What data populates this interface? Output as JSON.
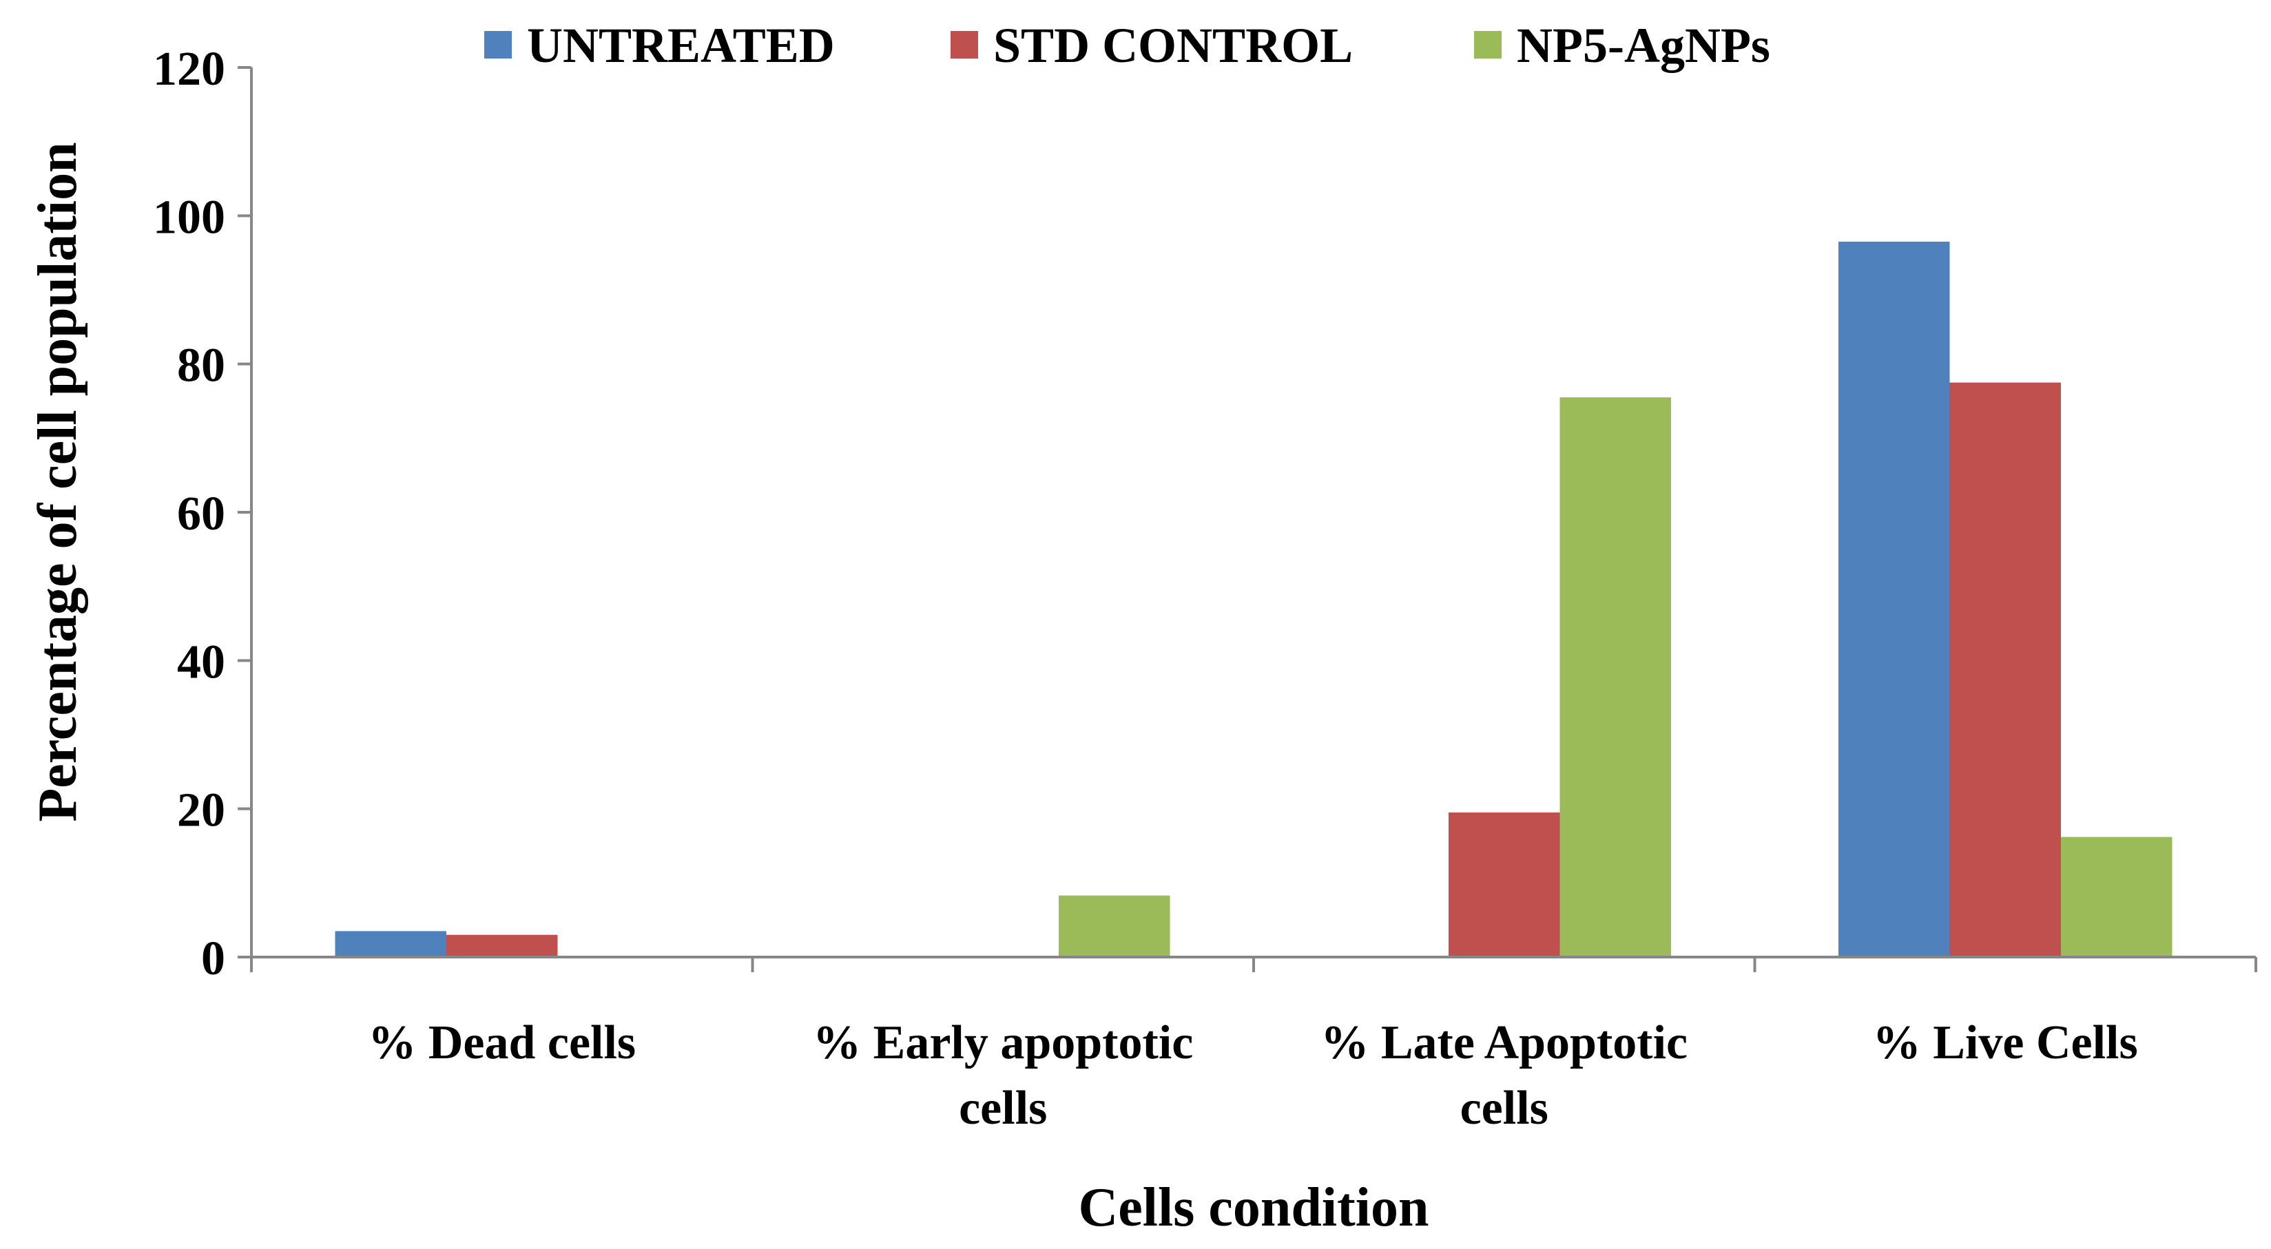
{
  "chart_data": {
    "type": "bar",
    "title": "",
    "xlabel": "Cells condition",
    "ylabel": "Percentage of cell population",
    "ylim": [
      0,
      120
    ],
    "yticks": [
      0,
      20,
      40,
      60,
      80,
      100,
      120
    ],
    "grid": false,
    "legend_position": "top",
    "categories": [
      [
        "% Dead cells"
      ],
      [
        "% Early apoptotic",
        "cells"
      ],
      [
        "% Late Apoptotic",
        "cells"
      ],
      [
        "% Live Cells"
      ]
    ],
    "series": [
      {
        "name": "UNTREATED",
        "color": "#4F81BD",
        "values": [
          3.5,
          0,
          0,
          96.5
        ]
      },
      {
        "name": "STD CONTROL",
        "color": "#C0504D",
        "values": [
          3,
          0,
          19.5,
          77.5
        ]
      },
      {
        "name": "NP5-AgNPs",
        "color": "#9BBB59",
        "values": [
          0,
          8.3,
          75.5,
          16.2
        ]
      }
    ]
  }
}
